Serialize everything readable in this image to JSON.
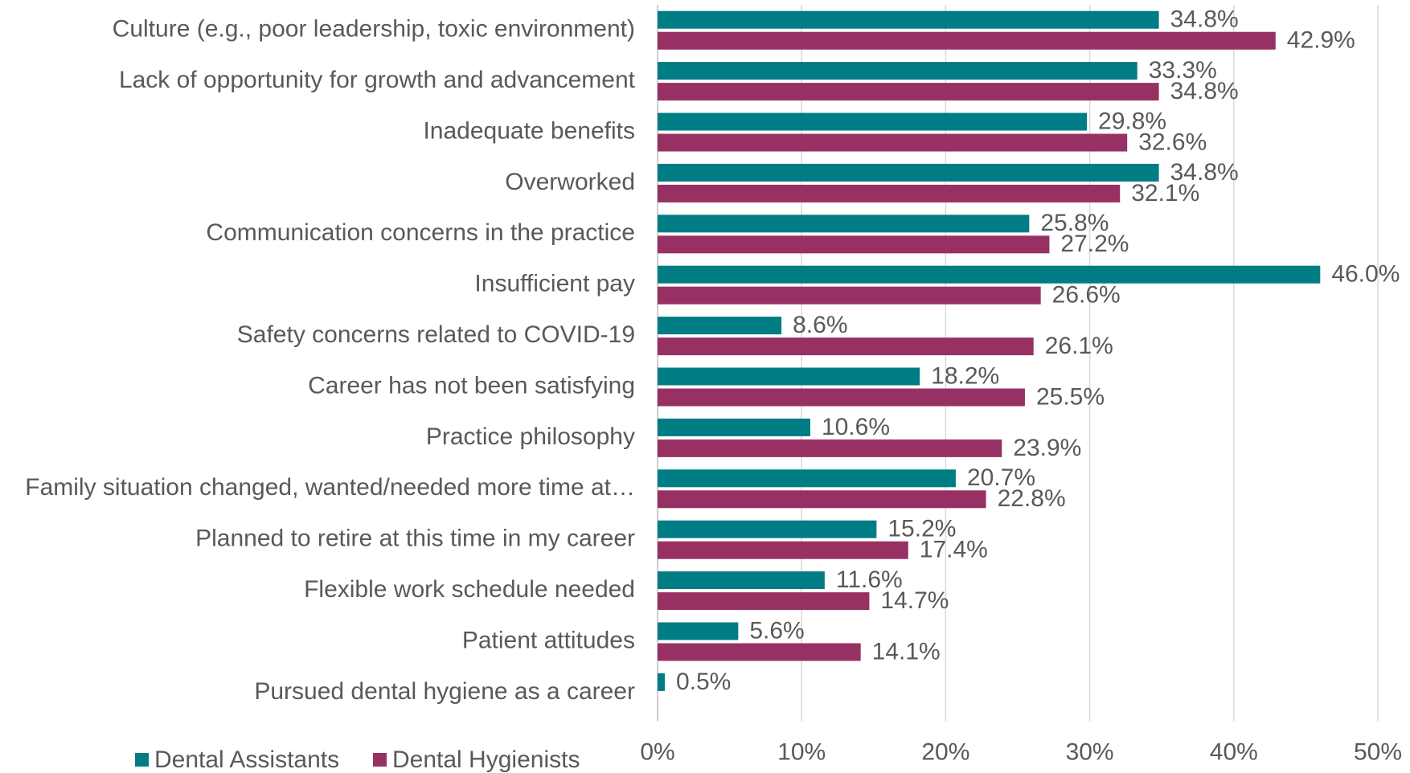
{
  "chart_data": {
    "type": "barh",
    "categories": [
      "Culture (e.g., poor leadership, toxic environment)",
      "Lack of opportunity for growth and advancement",
      "Inadequate benefits",
      "Overworked",
      "Communication concerns in the practice",
      "Insufficient pay",
      "Safety concerns related to COVID-19",
      "Career has not been satisfying",
      "Practice philosophy",
      "Family situation changed, wanted/needed more time at…",
      "Planned to retire at this time in my career",
      "Flexible work schedule needed",
      "Patient attitudes",
      "Pursued dental hygiene as a career"
    ],
    "series": [
      {
        "name": "Dental Assistants",
        "color": "#007c85",
        "values": [
          34.8,
          33.3,
          29.8,
          34.8,
          25.8,
          46.0,
          8.6,
          18.2,
          10.6,
          20.7,
          15.2,
          11.6,
          5.6,
          0.5
        ],
        "value_labels": [
          "34.8%",
          "33.3%",
          "29.8%",
          "34.8%",
          "25.8%",
          "46.0%",
          "8.6%",
          "18.2%",
          "10.6%",
          "20.7%",
          "15.2%",
          "11.6%",
          "5.6%",
          "0.5%"
        ]
      },
      {
        "name": "Dental Hygienists",
        "color": "#983163",
        "values": [
          42.9,
          34.8,
          32.6,
          32.1,
          27.2,
          26.6,
          26.1,
          25.5,
          23.9,
          22.8,
          17.4,
          14.7,
          14.1,
          null
        ],
        "value_labels": [
          "42.9%",
          "34.8%",
          "32.6%",
          "32.1%",
          "27.2%",
          "26.6%",
          "26.1%",
          "25.5%",
          "23.9%",
          "22.8%",
          "17.4%",
          "14.7%",
          "14.1%",
          null
        ]
      }
    ],
    "xlim": [
      0,
      50
    ],
    "xticks": [
      {
        "value": 0,
        "label": "0%"
      },
      {
        "value": 10,
        "label": "10%"
      },
      {
        "value": 20,
        "label": "20%"
      },
      {
        "value": 30,
        "label": "30%"
      },
      {
        "value": 40,
        "label": "40%"
      },
      {
        "value": 50,
        "label": "50%"
      }
    ],
    "grid": true,
    "legend": "bottom-left"
  }
}
